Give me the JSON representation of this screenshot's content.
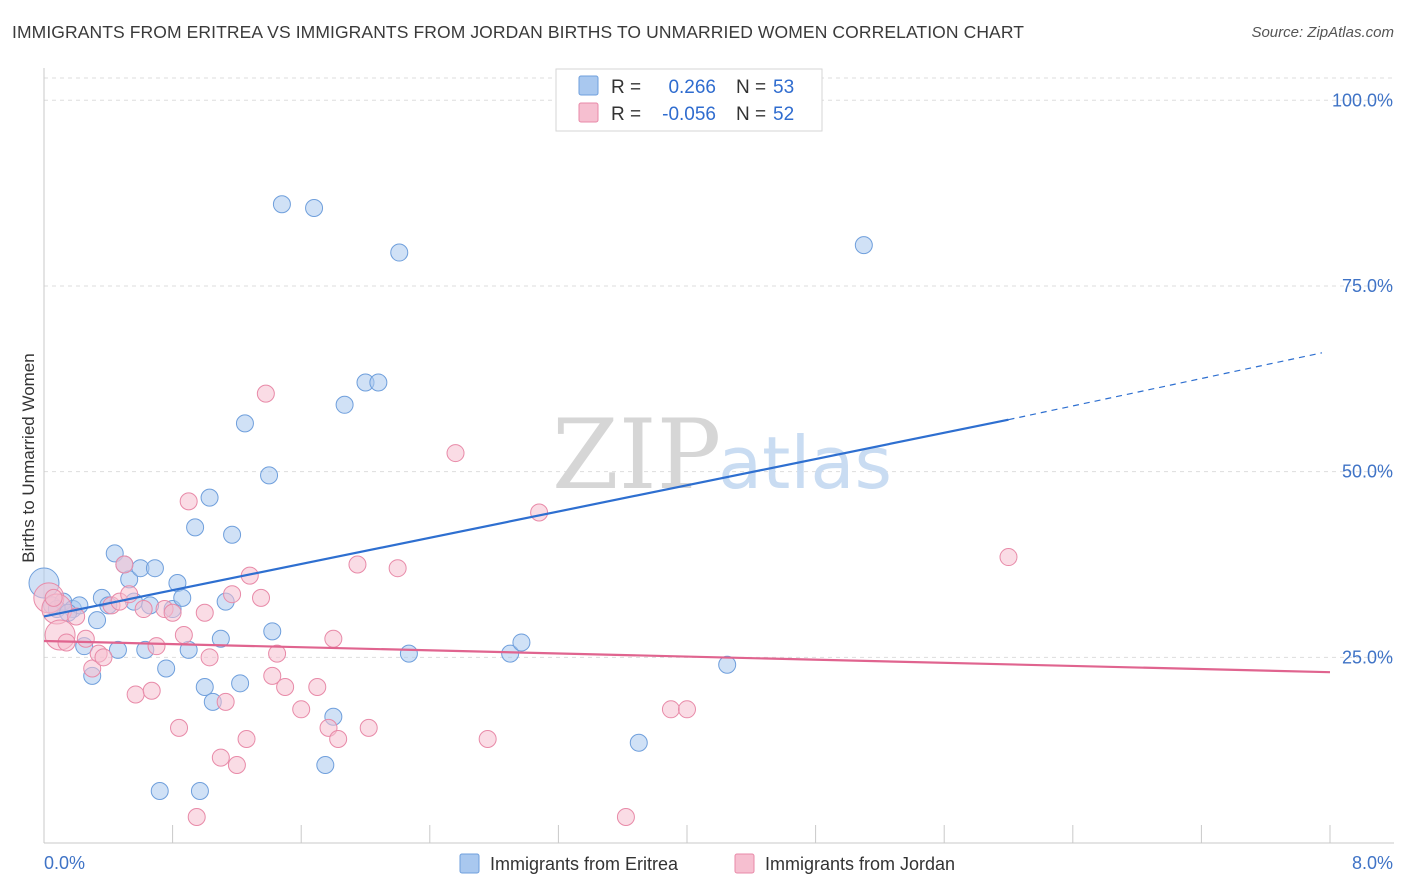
{
  "title": "IMMIGRANTS FROM ERITREA VS IMMIGRANTS FROM JORDAN BIRTHS TO UNMARRIED WOMEN CORRELATION CHART",
  "source": "Source: ZipAtlas.com",
  "watermark": {
    "zip": "ZIP",
    "atlas": "atlas"
  },
  "colors": {
    "eritrea_fill": "#a9c8ef",
    "eritrea_stroke": "#6f9fdc",
    "eritrea_line": "#2e6fd0",
    "jordan_fill": "#f6bfd0",
    "jordan_stroke": "#e88aa8",
    "jordan_line": "#e0648f",
    "tick_text": "#3f73c6",
    "grid": "#dddddd"
  },
  "legend": {
    "r_label": "R =",
    "n_label": "N =",
    "rows": [
      {
        "r": "0.266",
        "n": "53"
      },
      {
        "r": "-0.056",
        "n": "52"
      }
    ]
  },
  "chart_data": {
    "type": "scatter",
    "title": "IMMIGRANTS FROM ERITREA VS IMMIGRANTS FROM JORDAN BIRTHS TO UNMARRIED WOMEN CORRELATION CHART",
    "xlabel": "",
    "ylabel": "Births to Unmarried Women",
    "xlim": [
      0,
      8
    ],
    "ylim": [
      0,
      103
    ],
    "x_tick_labels": {
      "left": "0.0%",
      "right": "8.0%"
    },
    "y_ticks": [
      {
        "value": 25,
        "label": "25.0%"
      },
      {
        "value": 50,
        "label": "50.0%"
      },
      {
        "value": 75,
        "label": "75.0%"
      },
      {
        "value": 100,
        "label": "100.0%"
      }
    ],
    "series": [
      {
        "name": "Immigrants from Eritrea",
        "trend": {
          "x0": 0.0,
          "y0": 30.5,
          "x_solid_end": 6.0,
          "y_solid_end": 57.0,
          "x_dash_end": 7.95,
          "y_dash_end": 66.0
        },
        "points": [
          {
            "x": 0.0,
            "y": 35.0,
            "big": true
          },
          {
            "x": 0.05,
            "y": 32.0
          },
          {
            "x": 0.12,
            "y": 32.5
          },
          {
            "x": 0.18,
            "y": 31.5
          },
          {
            "x": 0.22,
            "y": 32.0
          },
          {
            "x": 0.25,
            "y": 26.5
          },
          {
            "x": 0.3,
            "y": 22.5
          },
          {
            "x": 0.33,
            "y": 30.0
          },
          {
            "x": 0.36,
            "y": 33.0
          },
          {
            "x": 0.4,
            "y": 32.0
          },
          {
            "x": 0.44,
            "y": 39.0
          },
          {
            "x": 0.46,
            "y": 26.0
          },
          {
            "x": 0.5,
            "y": 37.5
          },
          {
            "x": 0.53,
            "y": 35.5
          },
          {
            "x": 0.56,
            "y": 32.5
          },
          {
            "x": 0.6,
            "y": 37.0
          },
          {
            "x": 0.63,
            "y": 26.0
          },
          {
            "x": 0.66,
            "y": 32.0
          },
          {
            "x": 0.69,
            "y": 37.0
          },
          {
            "x": 0.72,
            "y": 7.0
          },
          {
            "x": 0.76,
            "y": 23.5
          },
          {
            "x": 0.8,
            "y": 31.5
          },
          {
            "x": 0.83,
            "y": 35.0
          },
          {
            "x": 0.86,
            "y": 33.0
          },
          {
            "x": 0.9,
            "y": 26.0
          },
          {
            "x": 0.94,
            "y": 42.5
          },
          {
            "x": 0.97,
            "y": 7.0
          },
          {
            "x": 1.0,
            "y": 21.0
          },
          {
            "x": 1.03,
            "y": 46.5
          },
          {
            "x": 1.05,
            "y": 19.0
          },
          {
            "x": 1.1,
            "y": 27.5
          },
          {
            "x": 1.13,
            "y": 32.5
          },
          {
            "x": 1.17,
            "y": 41.5
          },
          {
            "x": 1.22,
            "y": 21.5
          },
          {
            "x": 1.25,
            "y": 56.5
          },
          {
            "x": 1.4,
            "y": 49.5
          },
          {
            "x": 1.42,
            "y": 28.5
          },
          {
            "x": 1.48,
            "y": 86.0
          },
          {
            "x": 1.68,
            "y": 85.5
          },
          {
            "x": 1.75,
            "y": 10.5
          },
          {
            "x": 1.8,
            "y": 17.0
          },
          {
            "x": 1.87,
            "y": 59.0
          },
          {
            "x": 2.0,
            "y": 62.0
          },
          {
            "x": 2.08,
            "y": 62.0
          },
          {
            "x": 2.21,
            "y": 79.5
          },
          {
            "x": 2.27,
            "y": 25.5
          },
          {
            "x": 2.9,
            "y": 25.5
          },
          {
            "x": 2.97,
            "y": 27.0
          },
          {
            "x": 3.7,
            "y": 13.5
          },
          {
            "x": 4.25,
            "y": 24.0
          },
          {
            "x": 5.1,
            "y": 80.5
          },
          {
            "x": 0.08,
            "y": 31.5
          },
          {
            "x": 0.15,
            "y": 31.0
          }
        ]
      },
      {
        "name": "Immigrants from Jordan",
        "trend": {
          "x0": 0.0,
          "y0": 27.2,
          "x_solid_end": 8.0,
          "y_solid_end": 23.0
        },
        "points": [
          {
            "x": 0.03,
            "y": 33.0,
            "big": true
          },
          {
            "x": 0.08,
            "y": 31.5,
            "big": true
          },
          {
            "x": 0.1,
            "y": 28.0,
            "big": true
          },
          {
            "x": 0.14,
            "y": 27.0
          },
          {
            "x": 0.2,
            "y": 30.5
          },
          {
            "x": 0.26,
            "y": 27.5
          },
          {
            "x": 0.3,
            "y": 23.5
          },
          {
            "x": 0.34,
            "y": 25.5
          },
          {
            "x": 0.37,
            "y": 25.0
          },
          {
            "x": 0.42,
            "y": 32.0
          },
          {
            "x": 0.47,
            "y": 32.5
          },
          {
            "x": 0.5,
            "y": 37.5
          },
          {
            "x": 0.53,
            "y": 33.5
          },
          {
            "x": 0.57,
            "y": 20.0
          },
          {
            "x": 0.62,
            "y": 31.5
          },
          {
            "x": 0.67,
            "y": 20.5
          },
          {
            "x": 0.7,
            "y": 26.5
          },
          {
            "x": 0.75,
            "y": 31.5
          },
          {
            "x": 0.8,
            "y": 31.0
          },
          {
            "x": 0.84,
            "y": 15.5
          },
          {
            "x": 0.87,
            "y": 28.0
          },
          {
            "x": 0.9,
            "y": 46.0
          },
          {
            "x": 0.95,
            "y": 3.5
          },
          {
            "x": 1.0,
            "y": 31.0
          },
          {
            "x": 1.03,
            "y": 25.0
          },
          {
            "x": 1.1,
            "y": 11.5
          },
          {
            "x": 1.13,
            "y": 19.0
          },
          {
            "x": 1.17,
            "y": 33.5
          },
          {
            "x": 1.2,
            "y": 10.5
          },
          {
            "x": 1.26,
            "y": 14.0
          },
          {
            "x": 1.28,
            "y": 36.0
          },
          {
            "x": 1.35,
            "y": 33.0
          },
          {
            "x": 1.38,
            "y": 60.5
          },
          {
            "x": 1.42,
            "y": 22.5
          },
          {
            "x": 1.45,
            "y": 25.5
          },
          {
            "x": 1.5,
            "y": 21.0
          },
          {
            "x": 1.6,
            "y": 18.0
          },
          {
            "x": 1.7,
            "y": 21.0
          },
          {
            "x": 1.77,
            "y": 15.5
          },
          {
            "x": 1.8,
            "y": 27.5
          },
          {
            "x": 1.83,
            "y": 14.0
          },
          {
            "x": 1.95,
            "y": 37.5
          },
          {
            "x": 2.02,
            "y": 15.5
          },
          {
            "x": 2.2,
            "y": 37.0
          },
          {
            "x": 2.56,
            "y": 52.5
          },
          {
            "x": 2.76,
            "y": 14.0
          },
          {
            "x": 3.08,
            "y": 44.5
          },
          {
            "x": 3.62,
            "y": 3.5
          },
          {
            "x": 3.9,
            "y": 18.0
          },
          {
            "x": 4.0,
            "y": 18.0
          },
          {
            "x": 6.0,
            "y": 38.5
          },
          {
            "x": 0.06,
            "y": 33.0
          }
        ]
      }
    ]
  },
  "bottom_legend": [
    {
      "label": "Immigrants from Eritrea"
    },
    {
      "label": "Immigrants from Jordan"
    }
  ]
}
